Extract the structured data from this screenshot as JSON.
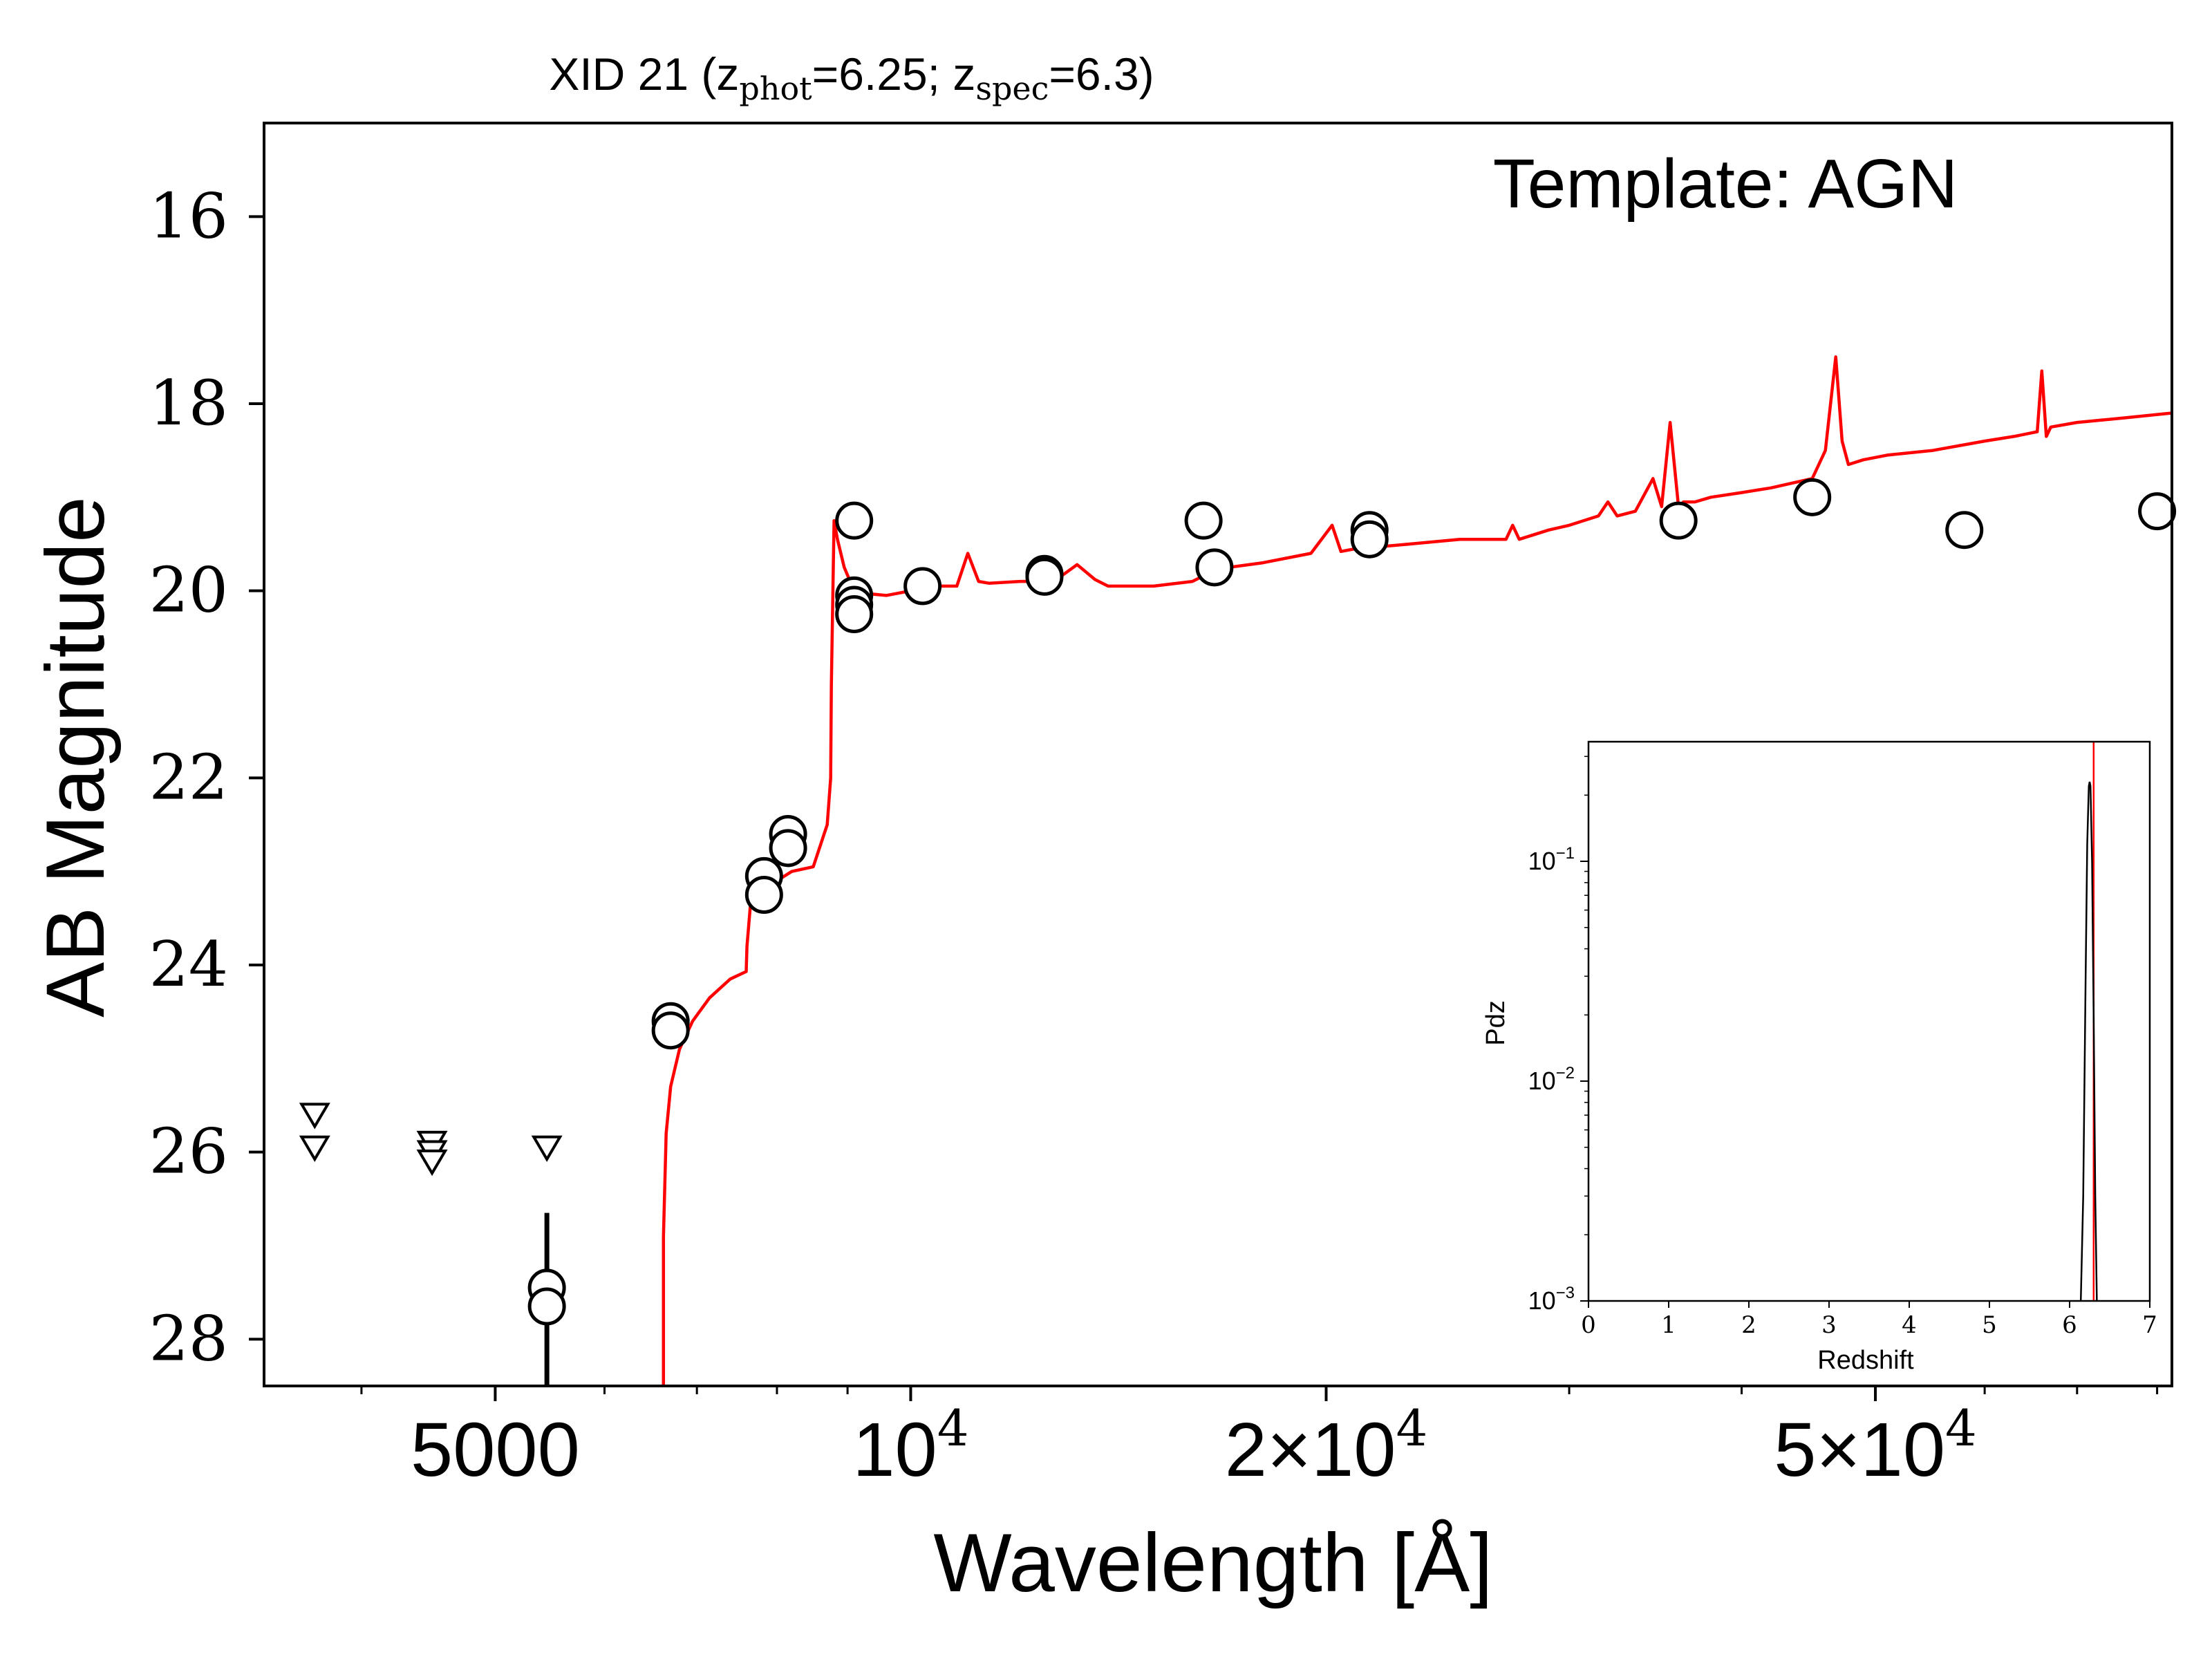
{
  "figure": {
    "title_main": "XID 21 (z",
    "title_sub1": "phot",
    "title_mid": "=6.25; z",
    "title_sub2": "spec",
    "title_end": "=6.3)",
    "annotation": "Template: AGN"
  },
  "chart_data": [
    {
      "type": "scatter",
      "xlabel": "Wavelength [Å]",
      "ylabel": "AB Magnitude",
      "x_scale": "log",
      "xlim": [
        3400,
        82000
      ],
      "ylim": [
        28.5,
        15
      ],
      "y_inverted": true,
      "x_ticks": [
        {
          "value": 5000,
          "base": "5000",
          "exp": ""
        },
        {
          "value": 10000,
          "base": "10",
          "exp": "4"
        },
        {
          "value": 20000,
          "base": "2×10",
          "exp": "4"
        },
        {
          "value": 50000,
          "base": "5×10",
          "exp": "4"
        }
      ],
      "y_ticks": [
        {
          "value": 16,
          "label": "16"
        },
        {
          "value": 18,
          "label": "18"
        },
        {
          "value": 20,
          "label": "20"
        },
        {
          "value": 22,
          "label": "22"
        },
        {
          "value": 24,
          "label": "24"
        },
        {
          "value": 26,
          "label": "26"
        },
        {
          "value": 28,
          "label": "28"
        }
      ],
      "detections": [
        {
          "x": 5450,
          "y": 27.45,
          "err_lo": 26.65,
          "err_hi": 28.5
        },
        {
          "x": 5450,
          "y": 27.65
        },
        {
          "x": 6700,
          "y": 24.6
        },
        {
          "x": 6700,
          "y": 24.7
        },
        {
          "x": 7830,
          "y": 23.05
        },
        {
          "x": 7830,
          "y": 23.25
        },
        {
          "x": 8150,
          "y": 22.6
        },
        {
          "x": 8150,
          "y": 22.75
        },
        {
          "x": 9100,
          "y": 19.25
        },
        {
          "x": 9100,
          "y": 20.05
        },
        {
          "x": 9100,
          "y": 20.15
        },
        {
          "x": 9100,
          "y": 20.25
        },
        {
          "x": 10200,
          "y": 19.95
        },
        {
          "x": 12500,
          "y": 19.82
        },
        {
          "x": 12500,
          "y": 19.85
        },
        {
          "x": 16300,
          "y": 19.25
        },
        {
          "x": 16600,
          "y": 19.75
        },
        {
          "x": 21500,
          "y": 19.35
        },
        {
          "x": 21500,
          "y": 19.45
        },
        {
          "x": 36000,
          "y": 19.25
        },
        {
          "x": 45000,
          "y": 19.0
        },
        {
          "x": 58000,
          "y": 19.35
        },
        {
          "x": 80000,
          "y": 19.15
        }
      ],
      "upper_limits": [
        {
          "x": 3700,
          "y": 25.6
        },
        {
          "x": 3700,
          "y": 25.95
        },
        {
          "x": 4500,
          "y": 25.9
        },
        {
          "x": 4500,
          "y": 26.0
        },
        {
          "x": 4500,
          "y": 26.1
        },
        {
          "x": 5450,
          "y": 25.95
        }
      ],
      "series": [
        {
          "color": "#ff0000",
          "x": [
            6620,
            6620,
            6650,
            6700,
            6800,
            6950,
            7150,
            7400,
            7600,
            7610,
            7700,
            7750,
            7850,
            8000,
            8200,
            8500,
            8700,
            8750,
            8760,
            8800,
            8850,
            8950,
            9100,
            9300,
            9600,
            10000,
            10400,
            10800,
            11000,
            11200,
            11400,
            12000,
            12700,
            13200,
            13600,
            13900,
            14300,
            15000,
            16000,
            16500,
            17000,
            18000,
            19500,
            20200,
            20500,
            21000,
            21800,
            23000,
            25000,
            27000,
            27300,
            27600,
            29000,
            30000,
            31500,
            32000,
            32500,
            33500,
            34500,
            35000,
            35500,
            36000,
            36300,
            37000,
            38000,
            40000,
            42000,
            45000,
            46000,
            46800,
            47300,
            47800,
            49000,
            51000,
            55000,
            60000,
            63000,
            65500,
            66000,
            66500,
            67000,
            70000,
            76000,
            82000
          ],
          "y": [
            28.5,
            26.9,
            25.8,
            25.3,
            24.9,
            24.6,
            24.35,
            24.15,
            24.07,
            23.8,
            22.9,
            22.95,
            23.05,
            23.1,
            23.0,
            22.95,
            22.5,
            22.0,
            21.0,
            19.25,
            19.45,
            19.75,
            20.0,
            20.03,
            20.05,
            20.0,
            19.95,
            19.95,
            19.6,
            19.9,
            19.92,
            19.9,
            19.9,
            19.72,
            19.88,
            19.95,
            19.95,
            19.95,
            19.9,
            19.8,
            19.75,
            19.7,
            19.6,
            19.3,
            19.58,
            19.55,
            19.53,
            19.5,
            19.45,
            19.45,
            19.3,
            19.45,
            19.35,
            19.3,
            19.2,
            19.05,
            19.2,
            19.15,
            18.8,
            19.1,
            18.2,
            19.1,
            19.05,
            19.05,
            19.0,
            18.95,
            18.9,
            18.8,
            18.5,
            17.5,
            18.4,
            18.65,
            18.6,
            18.55,
            18.5,
            18.4,
            18.35,
            18.3,
            17.65,
            18.35,
            18.25,
            18.2,
            18.15,
            18.1
          ]
        }
      ]
    },
    {
      "type": "line",
      "xlabel": "Redshift",
      "ylabel": "Pdz",
      "y_scale": "log",
      "xlim": [
        0,
        7
      ],
      "ylim": [
        0.001,
        0.35
      ],
      "x_ticks": [
        "0",
        "1",
        "2",
        "3",
        "4",
        "5",
        "6",
        "7"
      ],
      "y_ticks": [
        {
          "value": 0.1,
          "base": "10",
          "exp": "−1"
        },
        {
          "value": 0.01,
          "base": "10",
          "exp": "−2"
        },
        {
          "value": 0.001,
          "base": "10",
          "exp": "−3"
        }
      ],
      "series": [
        {
          "color": "#000000",
          "x": [
            6.14,
            6.17,
            6.2,
            6.22,
            6.24,
            6.25,
            6.26,
            6.28,
            6.3,
            6.32,
            6.34
          ],
          "y": [
            0.001,
            0.003,
            0.03,
            0.12,
            0.22,
            0.23,
            0.22,
            0.1,
            0.02,
            0.003,
            0.001
          ]
        }
      ],
      "reference_line": {
        "x": 6.3,
        "color": "#ff0000"
      }
    }
  ]
}
